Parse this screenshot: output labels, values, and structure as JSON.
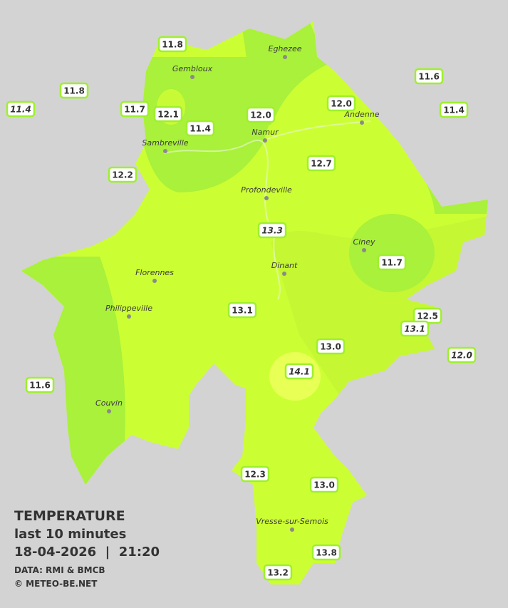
{
  "legend": {
    "title": "TEMPERATURE",
    "period": "last 10 minutes",
    "timestamp": "18-04-2026  |  21:20",
    "source": "DATA: RMI & BMCB",
    "copyright": "© METEO-BE.NET"
  },
  "cities": [
    "Eghezee",
    "Gembloux",
    "Andenne",
    "Namur",
    "Sambreville",
    "Profondeville",
    "Ciney",
    "Dinant",
    "Florennes",
    "Philippeville",
    "Couvin",
    "Vresse-sur-Semois"
  ],
  "stations": [
    {
      "label": "11.8",
      "italic": false
    },
    {
      "label": "11.8",
      "italic": false
    },
    {
      "label": "11.4",
      "italic": true
    },
    {
      "label": "11.7",
      "italic": false
    },
    {
      "label": "12.1",
      "italic": false
    },
    {
      "label": "11.4",
      "italic": false
    },
    {
      "label": "12.0",
      "italic": false
    },
    {
      "label": "12.0",
      "italic": false
    },
    {
      "label": "11.6",
      "italic": false
    },
    {
      "label": "11.4",
      "italic": false
    },
    {
      "label": "12.2",
      "italic": false
    },
    {
      "label": "12.7",
      "italic": false
    },
    {
      "label": "13.3",
      "italic": true
    },
    {
      "label": "11.7",
      "italic": false
    },
    {
      "label": "13.1",
      "italic": false
    },
    {
      "label": "12.5",
      "italic": false
    },
    {
      "label": "13.1",
      "italic": true
    },
    {
      "label": "12.0",
      "italic": true
    },
    {
      "label": "13.0",
      "italic": false
    },
    {
      "label": "14.1",
      "italic": true
    },
    {
      "label": "11.6",
      "italic": false
    },
    {
      "label": "12.3",
      "italic": false
    },
    {
      "label": "13.0",
      "italic": false
    },
    {
      "label": "13.8",
      "italic": false
    },
    {
      "label": "13.2",
      "italic": false
    }
  ]
}
